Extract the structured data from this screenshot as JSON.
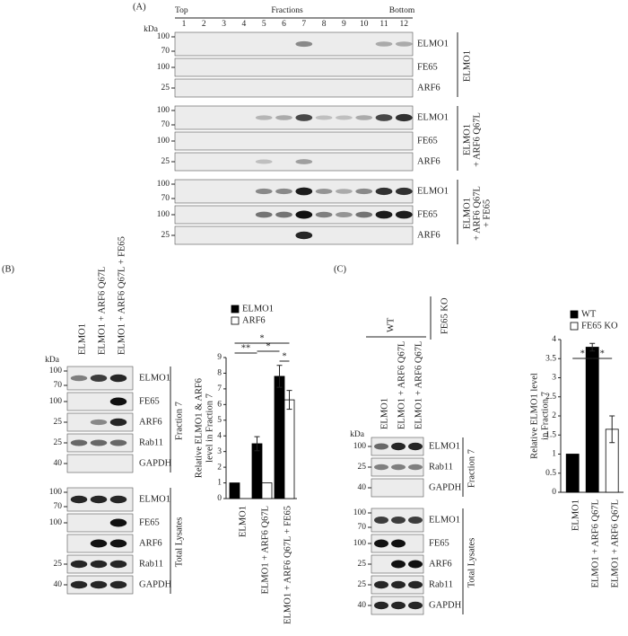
{
  "panel_a": {
    "label": "(A)",
    "top": "Top",
    "heading": "Fractions",
    "bottom": "Bottom",
    "kda": "kDa",
    "fractions": [
      "1",
      "2",
      "3",
      "4",
      "5",
      "6",
      "7",
      "8",
      "9",
      "10",
      "11",
      "12"
    ],
    "groups": [
      {
        "condition": [
          "ELMO1"
        ],
        "rows": [
          {
            "markers": [
              "100",
              "70"
            ],
            "protein": "ELMO1"
          },
          {
            "markers": [
              "100"
            ],
            "protein": "FE65"
          },
          {
            "markers": [
              "25"
            ],
            "protein": "ARF6"
          }
        ]
      },
      {
        "condition": [
          "ELMO1",
          "+ ARF6 Q67L"
        ],
        "rows": [
          {
            "markers": [
              "100",
              "70"
            ],
            "protein": "ELMO1"
          },
          {
            "markers": [
              "100"
            ],
            "protein": "FE65"
          },
          {
            "markers": [
              "25"
            ],
            "protein": "ARF6"
          }
        ]
      },
      {
        "condition": [
          "ELMO1",
          "+ ARF6 Q67L",
          "+ FE65"
        ],
        "rows": [
          {
            "markers": [
              "100",
              "70"
            ],
            "protein": "ELMO1"
          },
          {
            "markers": [
              "100"
            ],
            "protein": "FE65"
          },
          {
            "markers": [
              "25"
            ],
            "protein": "ARF6"
          }
        ]
      }
    ]
  },
  "panel_b": {
    "label": "(B)",
    "kda": "kDa",
    "lanes": [
      "ELMO1",
      "ELMO1 + ARF6 Q67L",
      "ELMO1 + ARF6 Q67L + FE65"
    ],
    "sections": [
      {
        "name": "Fraction 7",
        "rows": [
          {
            "markers": [
              "100",
              "70"
            ],
            "protein": "ELMO1"
          },
          {
            "markers": [
              "100"
            ],
            "protein": "FE65"
          },
          {
            "markers": [
              "25"
            ],
            "protein": "ARF6"
          },
          {
            "markers": [
              "25"
            ],
            "protein": "Rab11"
          },
          {
            "markers": [
              "40"
            ],
            "protein": "GAPDH"
          }
        ]
      },
      {
        "name": "Total Lysates",
        "rows": [
          {
            "markers": [
              "100",
              "70"
            ],
            "protein": "ELMO1"
          },
          {
            "markers": [
              "100"
            ],
            "protein": "FE65"
          },
          {
            "markers": [],
            "protein": "ARF6"
          },
          {
            "markers": [
              "25"
            ],
            "protein": "Rab11"
          },
          {
            "markers": [
              "40"
            ],
            "protein": "GAPDH"
          }
        ]
      }
    ]
  },
  "panel_c": {
    "label": "(C)",
    "kda": "kDa",
    "groups": [
      "WT",
      "FE65 KO"
    ],
    "lanes": [
      "ELMO1",
      "ELMO1 + ARF6 Q67L",
      "ELMO1 + ARF6 Q67L"
    ],
    "sections": [
      {
        "name": "Fraction 7",
        "rows": [
          {
            "markers": [
              "100"
            ],
            "protein": "ELMO1"
          },
          {
            "markers": [
              "25"
            ],
            "protein": "Rab11"
          },
          {
            "markers": [
              "40"
            ],
            "protein": "GAPDH"
          }
        ]
      },
      {
        "name": "Total Lysates",
        "rows": [
          {
            "markers": [
              "100",
              "70"
            ],
            "protein": "ELMO1"
          },
          {
            "markers": [
              "100"
            ],
            "protein": "FE65"
          },
          {
            "markers": [
              "25"
            ],
            "protein": "ARF6"
          },
          {
            "markers": [
              "25"
            ],
            "protein": "Rab11"
          },
          {
            "markers": [
              "40"
            ],
            "protein": "GAPDH"
          }
        ]
      }
    ]
  },
  "chart_data": [
    {
      "type": "bar",
      "ylabel": [
        "Relative ELMO1 & ARF6",
        "level in Fraction 7"
      ],
      "categories": [
        "ELMO1",
        "ELMO1 + ARF6 Q67L",
        "ELMO1 + ARF6 Q67L + FE65"
      ],
      "series": [
        {
          "name": "ELMO1",
          "color": "#000000",
          "values": [
            1,
            3.5,
            7.8
          ],
          "errors": [
            null,
            0.45,
            0.7
          ]
        },
        {
          "name": "ARF6",
          "color": "#ffffff",
          "values": [
            null,
            1,
            6.3
          ],
          "errors": [
            null,
            null,
            0.6
          ]
        }
      ],
      "grouped": true,
      "ylim": [
        0,
        9
      ],
      "yticks": [
        0,
        1,
        2,
        3,
        4,
        5,
        6,
        7,
        8,
        9
      ],
      "significance": [
        "*",
        "**",
        "*",
        "*"
      ]
    },
    {
      "type": "bar",
      "ylabel": [
        "Relative ELMO1 level",
        "in Fraction 7"
      ],
      "categories": [
        "ELMO1",
        "ELMO1 + ARF6 Q67L",
        "ELMO1 + ARF6 Q67L"
      ],
      "series": [
        {
          "name": "WT",
          "color": "#000000",
          "values": [
            1,
            3.8,
            null
          ],
          "errors": [
            null,
            0.1,
            null
          ]
        },
        {
          "name": "FE65 KO",
          "color": "#ffffff",
          "values": [
            null,
            null,
            1.65
          ],
          "errors": [
            null,
            null,
            0.35
          ]
        }
      ],
      "grouped": false,
      "ylim": [
        0,
        4
      ],
      "yticks": [
        0,
        0.5,
        1,
        1.5,
        2,
        2.5,
        3,
        3.5,
        4
      ],
      "significance": [
        "*",
        "*"
      ]
    }
  ]
}
